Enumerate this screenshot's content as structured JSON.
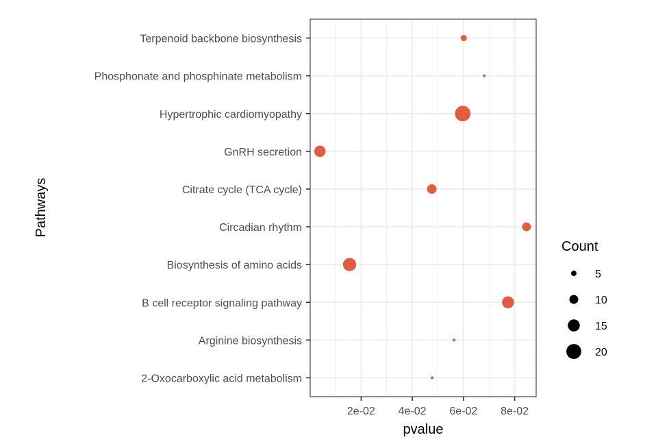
{
  "chart_data": {
    "type": "scatter",
    "xlabel": "pvalue",
    "ylabel": "Pathways",
    "xlim": [
      0.0001,
      0.0884
    ],
    "x_ticks": [
      0.02,
      0.04,
      0.06,
      0.08
    ],
    "x_tick_labels": [
      "2e-02",
      "4e-02",
      "6e-02",
      "8e-02"
    ],
    "grid": true,
    "point_color": "#E05C42",
    "categories": [
      "2-Oxocarboxylic acid metabolism",
      "Arginine biosynthesis",
      "B cell receptor signaling pathway",
      "Biosynthesis of amino acids",
      "Circadian rhythm",
      "Citrate cycle (TCA cycle)",
      "GnRH secretion",
      "Hypertrophic cardiomyopathy",
      "Phosphonate and phosphinate metabolism",
      "Terpenoid backbone biosynthesis"
    ],
    "points": [
      {
        "pathway": "2-Oxocarboxylic acid metabolism",
        "pvalue": 0.0477,
        "count": 2
      },
      {
        "pathway": "Arginine biosynthesis",
        "pvalue": 0.0563,
        "count": 2
      },
      {
        "pathway": "B cell receptor signaling pathway",
        "pvalue": 0.0774,
        "count": 15
      },
      {
        "pathway": "Biosynthesis of amino acids",
        "pvalue": 0.0155,
        "count": 17
      },
      {
        "pathway": "Circadian rhythm",
        "pvalue": 0.0846,
        "count": 10
      },
      {
        "pathway": "Citrate cycle (TCA cycle)",
        "pvalue": 0.0476,
        "count": 11
      },
      {
        "pathway": "GnRH secretion",
        "pvalue": 0.0039,
        "count": 14
      },
      {
        "pathway": "Hypertrophic cardiomyopathy",
        "pvalue": 0.0597,
        "count": 21
      },
      {
        "pathway": "Phosphonate and phosphinate metabolism",
        "pvalue": 0.0681,
        "count": 2
      },
      {
        "pathway": "Terpenoid backbone biosynthesis",
        "pvalue": 0.0601,
        "count": 6
      }
    ],
    "legend": {
      "title": "Count",
      "placement": "right",
      "entries": [
        {
          "label": "5",
          "count": 5
        },
        {
          "label": "10",
          "count": 10
        },
        {
          "label": "15",
          "count": 15
        },
        {
          "label": "20",
          "count": 20
        }
      ]
    }
  }
}
